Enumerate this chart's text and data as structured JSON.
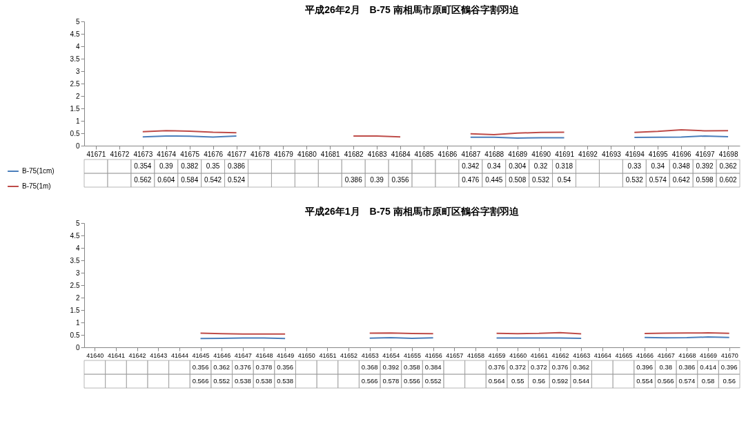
{
  "chart_data": [
    {
      "type": "line",
      "title": "平成26年2月　B-75 南相馬市原町区鶴谷字割羽迫",
      "categories": [
        "41671",
        "41672",
        "41673",
        "41674",
        "41675",
        "41676",
        "41677",
        "41678",
        "41679",
        "41680",
        "41681",
        "41682",
        "41683",
        "41684",
        "41685",
        "41686",
        "41687",
        "41688",
        "41689",
        "41690",
        "41691",
        "41692",
        "41693",
        "41694",
        "41695",
        "41696",
        "41697",
        "41698"
      ],
      "series": [
        {
          "name": "B-75(1cm)",
          "color": "#4a7ebb",
          "values": [
            null,
            null,
            0.354,
            0.39,
            0.382,
            0.35,
            0.386,
            null,
            null,
            null,
            null,
            null,
            null,
            null,
            null,
            null,
            0.342,
            0.34,
            0.304,
            0.32,
            0.318,
            null,
            null,
            0.33,
            0.34,
            0.348,
            0.392,
            0.362
          ]
        },
        {
          "name": "B-75(1m)",
          "color": "#be4b48",
          "values": [
            null,
            null,
            0.562,
            0.604,
            0.584,
            0.542,
            0.524,
            null,
            null,
            null,
            null,
            0.386,
            0.39,
            0.356,
            null,
            null,
            0.476,
            0.445,
            0.508,
            0.532,
            0.54,
            null,
            null,
            0.532,
            0.574,
            0.642,
            0.598,
            0.602
          ]
        }
      ],
      "ylim": [
        0,
        5
      ],
      "yticks": [
        0,
        0.5,
        1,
        1.5,
        2,
        2.5,
        3,
        3.5,
        4,
        4.5,
        5
      ],
      "data_labels": true,
      "legend": "bottom"
    },
    {
      "type": "line",
      "title": "平成26年1月　B-75 南相馬市原町区鶴谷字割羽迫",
      "categories": [
        "41640",
        "41641",
        "41642",
        "41643",
        "41644",
        "41645",
        "41646",
        "41647",
        "41648",
        "41649",
        "41650",
        "41651",
        "41652",
        "41653",
        "41654",
        "41655",
        "41656",
        "41657",
        "41658",
        "41659",
        "41660",
        "41661",
        "41662",
        "41663",
        "41664",
        "41665",
        "41666",
        "41667",
        "41668",
        "41669",
        "41670"
      ],
      "series": [
        {
          "name": "B-75(1cm)",
          "color": "#4a7ebb",
          "values": [
            null,
            null,
            null,
            null,
            null,
            0.356,
            0.362,
            0.376,
            0.378,
            0.356,
            null,
            null,
            null,
            0.368,
            0.392,
            0.358,
            0.384,
            null,
            null,
            0.376,
            0.372,
            0.372,
            0.376,
            0.362,
            null,
            null,
            0.396,
            0.38,
            0.386,
            0.414,
            0.396
          ]
        },
        {
          "name": "B-75(1m)",
          "color": "#be4b48",
          "values": [
            null,
            null,
            null,
            null,
            null,
            0.566,
            0.552,
            0.538,
            0.538,
            0.538,
            null,
            null,
            null,
            0.566,
            0.578,
            0.556,
            0.552,
            null,
            null,
            0.564,
            0.55,
            0.56,
            0.592,
            0.544,
            null,
            null,
            0.554,
            0.566,
            0.574,
            0.58,
            0.56
          ]
        }
      ],
      "ylim": [
        0,
        5
      ],
      "yticks": [
        0,
        0.5,
        1,
        1.5,
        2,
        2.5,
        3,
        3.5,
        4,
        4.5,
        5
      ],
      "data_labels": true,
      "legend": "bottom"
    }
  ]
}
